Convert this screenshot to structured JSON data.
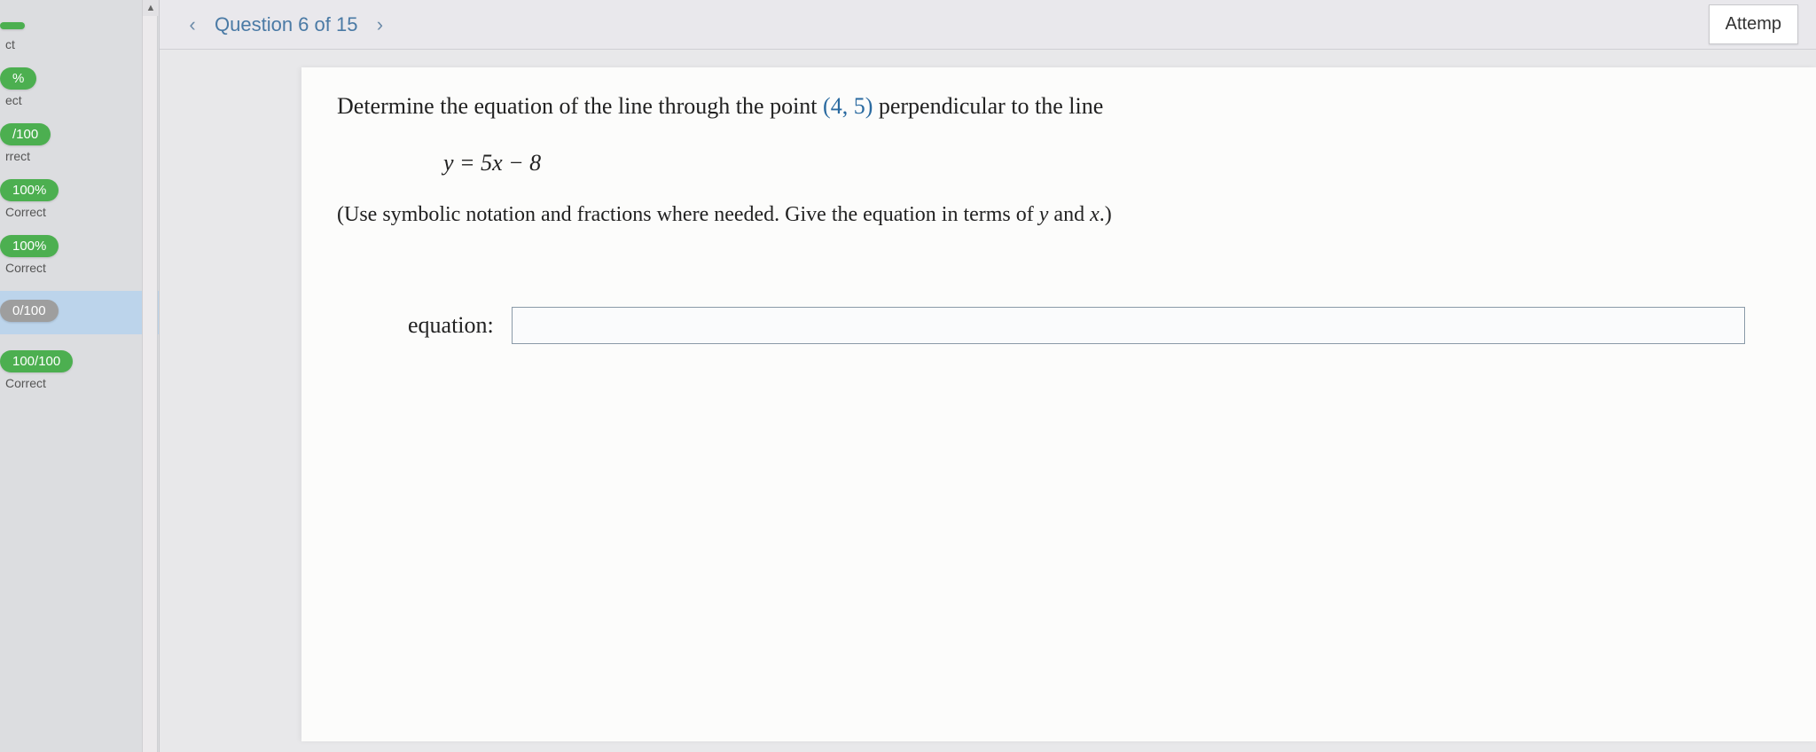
{
  "nav": {
    "prev_glyph": "‹",
    "next_glyph": "›",
    "question_label": "Question 6 of 15",
    "attempt_button": "Attemp"
  },
  "sidebar": {
    "items": [
      {
        "score": "",
        "status": "ct",
        "color": "green"
      },
      {
        "score": "%",
        "status": "ect",
        "color": "green"
      },
      {
        "score": "/100",
        "status": "rrect",
        "color": "green"
      },
      {
        "score": "100%",
        "status": "Correct",
        "color": "green"
      },
      {
        "score": "100%",
        "status": "Correct",
        "color": "green"
      },
      {
        "score": "0/100",
        "status": "",
        "color": "grey",
        "current": true
      },
      {
        "score": "100/100",
        "status": "Correct",
        "color": "green"
      }
    ]
  },
  "question": {
    "prompt_pre": "Determine the equation of the line through the point ",
    "point": "(4, 5)",
    "prompt_post": " perpendicular to the line",
    "formula": "y = 5x − 8",
    "hint_pre": "(Use symbolic notation and fractions where needed. Give the equation in terms of ",
    "hint_var1": "y",
    "hint_mid": " and ",
    "hint_var2": "x",
    "hint_post": ".)",
    "answer_label": "equation:",
    "answer_value": ""
  },
  "colors": {
    "pill_green": "#4caf50",
    "pill_grey": "#9e9e9e",
    "link_blue": "#4a7aa5",
    "paper_bg": "#fcfcfb"
  }
}
